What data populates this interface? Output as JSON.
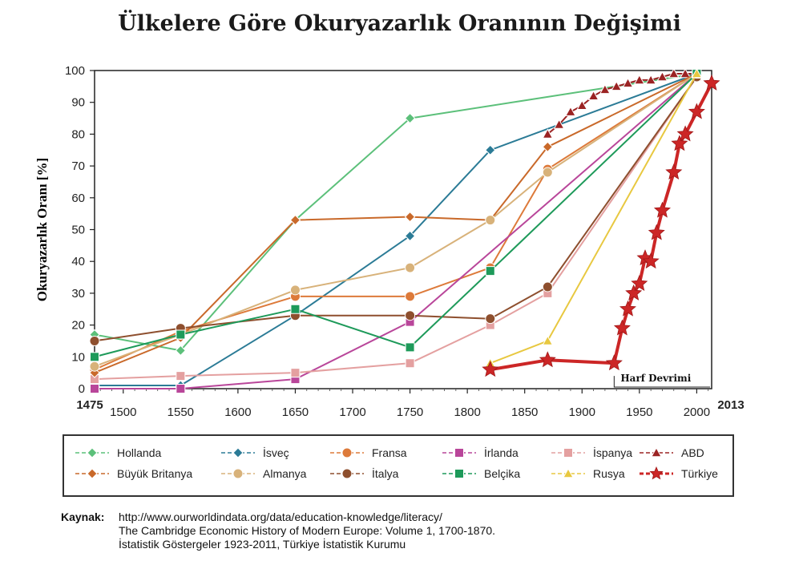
{
  "title": "Ülkelere Göre Okuryazarlık Oranının Değişimi",
  "chart_data": {
    "type": "line",
    "title": "Ülkelere Göre Okuryazarlık Oranının Değişimi",
    "ylabel": "Okuryazarlık Oranı [%]",
    "xlabel": "",
    "xlim": [
      1475,
      2013
    ],
    "ylim": [
      0,
      100
    ],
    "x_ticks": [
      "1500",
      "1550",
      "1600",
      "1650",
      "1700",
      "1750",
      "1800",
      "1850",
      "1900",
      "1950",
      "2000"
    ],
    "x_edge_labels": [
      "1475",
      "2013"
    ],
    "y_ticks": [
      "0",
      "10",
      "20",
      "30",
      "40",
      "50",
      "60",
      "70",
      "80",
      "90",
      "100"
    ],
    "grid": false,
    "legend_position": "bottom",
    "annotations": [
      {
        "text": "Harf Devrimi",
        "x": 1928,
        "y": 4
      }
    ],
    "series": [
      {
        "name": "Hollanda",
        "color": "#5cc07a",
        "marker": "diamond",
        "points": [
          [
            1475,
            17
          ],
          [
            1550,
            12
          ],
          [
            1650,
            53
          ],
          [
            1750,
            85
          ],
          [
            2000,
            99
          ]
        ]
      },
      {
        "name": "İsveç",
        "color": "#2b7b96",
        "marker": "diamond",
        "points": [
          [
            1475,
            1
          ],
          [
            1550,
            1
          ],
          [
            1650,
            23
          ],
          [
            1750,
            48
          ],
          [
            1820,
            75
          ],
          [
            2000,
            99
          ]
        ]
      },
      {
        "name": "Fransa",
        "color": "#dd7a3a",
        "marker": "circle",
        "points": [
          [
            1475,
            6
          ],
          [
            1550,
            18
          ],
          [
            1650,
            29
          ],
          [
            1750,
            29
          ],
          [
            1820,
            38
          ],
          [
            1870,
            69
          ],
          [
            2000,
            99
          ]
        ]
      },
      {
        "name": "İrlanda",
        "color": "#b9469a",
        "marker": "square",
        "points": [
          [
            1475,
            0
          ],
          [
            1550,
            0
          ],
          [
            1650,
            3
          ],
          [
            1750,
            21
          ],
          [
            2000,
            99
          ]
        ]
      },
      {
        "name": "İspanya",
        "color": "#e4a0a0",
        "marker": "square",
        "points": [
          [
            1475,
            3
          ],
          [
            1550,
            4
          ],
          [
            1650,
            5
          ],
          [
            1750,
            8
          ],
          [
            1820,
            20
          ],
          [
            1870,
            30
          ],
          [
            2000,
            98
          ]
        ]
      },
      {
        "name": "ABD",
        "color": "#9b2323",
        "marker": "triangle",
        "points": [
          [
            1870,
            80
          ],
          [
            1880,
            83
          ],
          [
            1890,
            87
          ],
          [
            1900,
            89
          ],
          [
            1910,
            92
          ],
          [
            1920,
            94
          ],
          [
            1930,
            95
          ],
          [
            1940,
            96
          ],
          [
            1950,
            97
          ],
          [
            1960,
            97
          ],
          [
            1970,
            98
          ],
          [
            1980,
            99
          ],
          [
            1990,
            99
          ],
          [
            2000,
            99
          ]
        ]
      },
      {
        "name": "Büyük Britanya",
        "color": "#c9692a",
        "marker": "diamond",
        "points": [
          [
            1475,
            5
          ],
          [
            1550,
            16
          ],
          [
            1650,
            53
          ],
          [
            1750,
            54
          ],
          [
            1820,
            53
          ],
          [
            1870,
            76
          ],
          [
            2000,
            99
          ]
        ]
      },
      {
        "name": "Almanya",
        "color": "#d8b27a",
        "marker": "circle",
        "points": [
          [
            1475,
            7
          ],
          [
            1550,
            17
          ],
          [
            1650,
            31
          ],
          [
            1750,
            38
          ],
          [
            1820,
            53
          ],
          [
            1870,
            68
          ],
          [
            2000,
            99
          ]
        ]
      },
      {
        "name": "İtalya",
        "color": "#8e4f2e",
        "marker": "circle",
        "points": [
          [
            1475,
            15
          ],
          [
            1550,
            19
          ],
          [
            1650,
            23
          ],
          [
            1750,
            23
          ],
          [
            1820,
            22
          ],
          [
            1870,
            32
          ],
          [
            2000,
            98
          ]
        ]
      },
      {
        "name": "Belçika",
        "color": "#1e9a5a",
        "marker": "square",
        "points": [
          [
            1475,
            10
          ],
          [
            1550,
            17
          ],
          [
            1650,
            25
          ],
          [
            1750,
            13
          ],
          [
            1820,
            37
          ],
          [
            2000,
            99
          ]
        ]
      },
      {
        "name": "Rusya",
        "color": "#e8c840",
        "marker": "triangle",
        "points": [
          [
            1820,
            8
          ],
          [
            1870,
            15
          ],
          [
            2000,
            99
          ]
        ]
      },
      {
        "name": "Türkiye",
        "color": "#cc2626",
        "marker": "star",
        "points": [
          [
            1820,
            6
          ],
          [
            1870,
            9
          ],
          [
            1928,
            8
          ],
          [
            1935,
            19
          ],
          [
            1940,
            25
          ],
          [
            1945,
            30
          ],
          [
            1950,
            33
          ],
          [
            1955,
            41
          ],
          [
            1960,
            40
          ],
          [
            1965,
            49
          ],
          [
            1970,
            56
          ],
          [
            1980,
            68
          ],
          [
            1985,
            77
          ],
          [
            1990,
            80
          ],
          [
            2000,
            87
          ],
          [
            2013,
            96
          ]
        ]
      }
    ]
  },
  "source": {
    "label": "Kaynak:",
    "lines": [
      "http://www.ourworldindata.org/data/education-knowledge/literacy/",
      "The Cambridge Economic History of Modern Europe: Volume 1, 1700-1870.",
      "İstatistik Göstergeler 1923-2011, Türkiye İstatistik Kurumu"
    ]
  }
}
